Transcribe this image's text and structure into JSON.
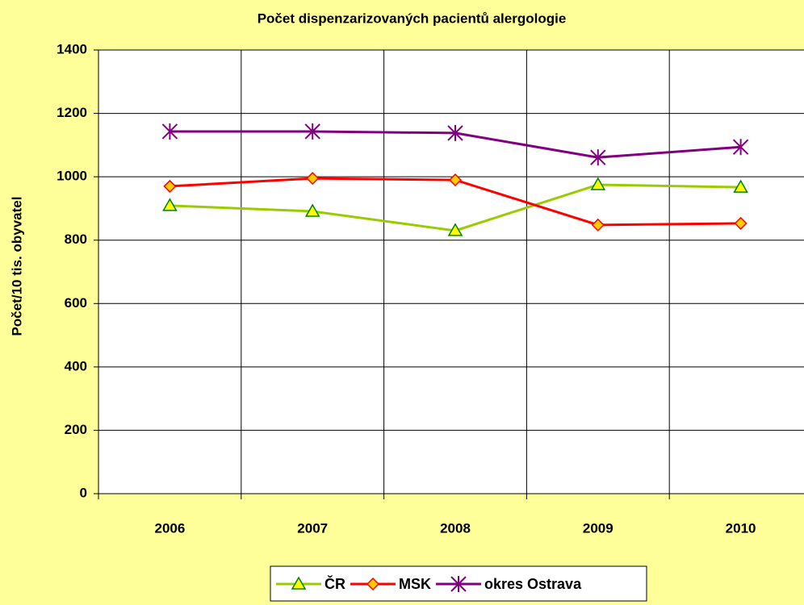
{
  "chart_data": {
    "type": "line",
    "title": "Počet dispenzarizovaných pacientů alergologie",
    "y_label": "Počet/10 tis. obyvatel",
    "categories": [
      "2006",
      "2007",
      "2008",
      "2009",
      "2010"
    ],
    "series": [
      {
        "name": "ČR",
        "color": "#99cc00",
        "marker": "triangle",
        "marker_color": "#ffff00",
        "values": [
          909,
          891,
          830,
          975,
          967
        ]
      },
      {
        "name": "MSK",
        "color": "#ff0000",
        "marker": "diamond",
        "marker_color": "#ffcc00",
        "values": [
          970,
          995,
          990,
          848,
          853
        ]
      },
      {
        "name": "okres Ostrava",
        "color": "#800080",
        "marker": "star",
        "marker_color": "#800080",
        "values": [
          1143,
          1143,
          1138,
          1061,
          1094
        ]
      }
    ],
    "ylim": [
      0,
      1400
    ],
    "yticks": [
      0,
      200,
      400,
      600,
      800,
      1000,
      1200,
      1400
    ],
    "grid": true,
    "legend": "bottom"
  }
}
